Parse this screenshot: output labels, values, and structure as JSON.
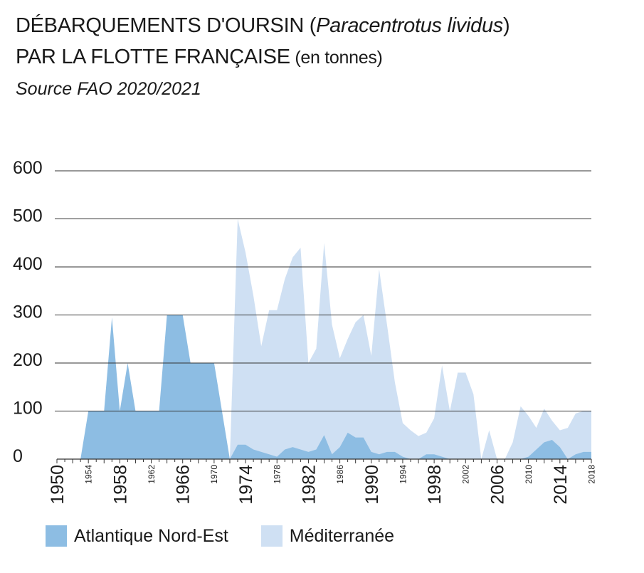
{
  "title": {
    "line1_main": "DÉBARQUEMENTS D'OURSIN (",
    "line1_species": "Paracentrotus lividus",
    "line1_close": ")",
    "line2_main": "PAR LA FLOTTE FRANÇAISE",
    "line2_unit": " (en tonnes)"
  },
  "subtitle": "Source FAO 2020/2021",
  "colors": {
    "atlantique": "#8dbde3",
    "mediterranee": "#cfe0f3",
    "gridline": "#333333",
    "text": "#1a1a1a"
  },
  "chart_data": {
    "type": "area",
    "xlim": [
      1950,
      2018
    ],
    "ylim": [
      0,
      600
    ],
    "grid": true,
    "y_ticks": [
      "600",
      "500",
      "400",
      "300",
      "200",
      "100",
      "0"
    ],
    "x_ticks_major": [
      "1950",
      "1958",
      "1966",
      "1974",
      "1982",
      "1990",
      "1998",
      "2006",
      "2014"
    ],
    "x_ticks_minor": [
      "1954",
      "1962",
      "1970",
      "1978",
      "1986",
      "1994",
      "2002",
      "2010",
      "2018"
    ],
    "legend_position": "bottom",
    "series": [
      {
        "name": "Méditerranée",
        "color_key": "mediterranee",
        "x": [
          1972,
          1973,
          1974,
          1975,
          1976,
          1977,
          1978,
          1979,
          1980,
          1981,
          1982,
          1983,
          1984,
          1985,
          1986,
          1987,
          1988,
          1989,
          1990,
          1991,
          1992,
          1993,
          1994,
          1995,
          1996,
          1997,
          1998,
          1999,
          2000,
          2001,
          2002,
          2003,
          2004,
          2005,
          2006,
          2007,
          2008,
          2009,
          2010,
          2011,
          2012,
          2013,
          2014,
          2015,
          2016,
          2017,
          2018
        ],
        "values": [
          0,
          500,
          430,
          340,
          235,
          310,
          310,
          375,
          420,
          440,
          200,
          230,
          450,
          280,
          210,
          250,
          285,
          300,
          215,
          395,
          280,
          160,
          75,
          60,
          48,
          55,
          85,
          195,
          100,
          180,
          180,
          135,
          0,
          60,
          0,
          0,
          35,
          110,
          90,
          65,
          105,
          80,
          60,
          65,
          95,
          100,
          100
        ]
      },
      {
        "name": "Atlantique Nord-Est",
        "color_key": "atlantique",
        "x": [
          1953,
          1954,
          1955,
          1956,
          1957,
          1958,
          1959,
          1960,
          1961,
          1962,
          1963,
          1964,
          1965,
          1966,
          1967,
          1968,
          1969,
          1970,
          1971,
          1972,
          1973,
          1974,
          1975,
          1976,
          1977,
          1978,
          1979,
          1980,
          1981,
          1982,
          1983,
          1984,
          1985,
          1986,
          1987,
          1988,
          1989,
          1990,
          1991,
          1992,
          1993,
          1994,
          1995,
          1996,
          1997,
          1998,
          1999,
          2000,
          2001,
          2002,
          2003,
          2004,
          2005,
          2006,
          2007,
          2008,
          2009,
          2010,
          2011,
          2012,
          2013,
          2014,
          2015,
          2016,
          2017,
          2018
        ],
        "values": [
          0,
          100,
          100,
          100,
          295,
          100,
          200,
          100,
          100,
          100,
          100,
          300,
          300,
          300,
          200,
          200,
          200,
          200,
          100,
          0,
          30,
          30,
          20,
          15,
          10,
          5,
          20,
          25,
          20,
          15,
          20,
          50,
          10,
          25,
          55,
          45,
          45,
          15,
          10,
          15,
          15,
          5,
          0,
          0,
          10,
          10,
          5,
          0,
          0,
          0,
          0,
          0,
          0,
          0,
          0,
          0,
          0,
          5,
          20,
          35,
          40,
          25,
          0,
          10,
          15,
          15
        ]
      }
    ]
  },
  "legend": [
    {
      "label": "Atlantique Nord-Est",
      "color_key": "atlantique"
    },
    {
      "label": "Méditerranée",
      "color_key": "mediterranee"
    }
  ]
}
